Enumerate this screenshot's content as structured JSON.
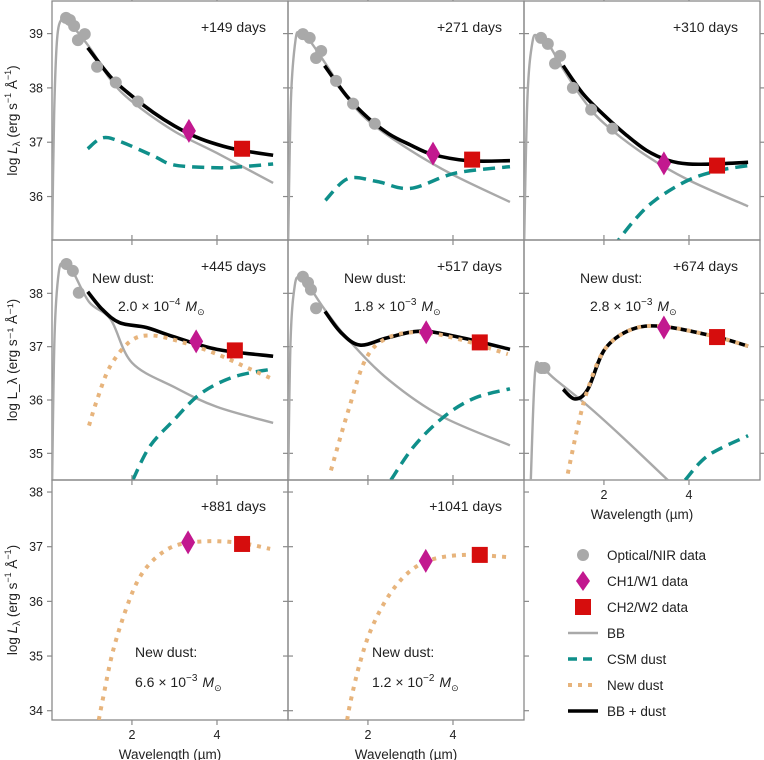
{
  "chart_data": {
    "type": "line",
    "xlabel": "Wavelength (µm)",
    "ylabel": "log L_λ (erg s⁻¹ Å⁻¹)",
    "ylabel_parts": {
      "pre": "log ",
      "L": "L",
      "sub": "λ",
      "units_a": " (erg s",
      "exp1": "−1",
      "units_b": " Å",
      "exp2": "−1",
      "units_c": ")"
    },
    "xlim": [
      0.12,
      5.67
    ],
    "xticks": [
      "2",
      "4"
    ],
    "colors": {
      "optical": "#a9a9a9",
      "ch1": "#c2188f",
      "ch2": "#d60d0d",
      "bb": "#a9a9a9",
      "csm": "#0f8f8a",
      "new": "#e7b47c",
      "total": "#000000"
    },
    "rows": [
      {
        "ylim": [
          35.2,
          39.6
        ],
        "yticks": [
          36,
          37,
          38,
          39
        ]
      },
      {
        "ylim": [
          34.5,
          39.0
        ],
        "yticks": [
          35,
          36,
          37,
          38
        ]
      },
      {
        "ylim": [
          33.83,
          38.22
        ],
        "yticks": [
          34,
          35,
          36,
          37,
          38
        ]
      }
    ],
    "panels": [
      {
        "label": "+149 days",
        "optical": [
          [
            0.45,
            39.29
          ],
          [
            0.54,
            39.25
          ],
          [
            0.64,
            39.14
          ],
          [
            0.73,
            38.88
          ],
          [
            0.89,
            38.99
          ],
          [
            1.18,
            38.39
          ],
          [
            1.62,
            38.1
          ],
          [
            2.14,
            37.75
          ]
        ],
        "ch1": [
          3.34,
          37.21
        ],
        "ch2": [
          4.59,
          36.88
        ],
        "bb": [
          [
            0.12,
            35.0
          ],
          [
            0.17,
            37.5
          ],
          [
            0.24,
            38.9
          ],
          [
            0.35,
            39.27
          ],
          [
            0.5,
            39.22
          ],
          [
            1.0,
            38.75
          ],
          [
            1.5,
            38.15
          ],
          [
            2.0,
            37.75
          ],
          [
            3.0,
            37.2
          ],
          [
            4.0,
            36.8
          ],
          [
            5.32,
            36.25
          ]
        ],
        "total": [
          [
            0.96,
            38.74
          ],
          [
            1.5,
            38.2
          ],
          [
            2.0,
            37.85
          ],
          [
            2.5,
            37.55
          ],
          [
            3.0,
            37.3
          ],
          [
            3.5,
            37.1
          ],
          [
            4.0,
            36.96
          ],
          [
            4.5,
            36.86
          ],
          [
            5.32,
            36.76
          ]
        ],
        "csm": [
          [
            0.96,
            36.88
          ],
          [
            1.3,
            37.08
          ],
          [
            1.7,
            37.02
          ],
          [
            2.5,
            36.75
          ],
          [
            3.0,
            36.58
          ],
          [
            4.0,
            36.53
          ],
          [
            4.6,
            36.55
          ],
          [
            5.32,
            36.6
          ]
        ]
      },
      {
        "label": "+271 days",
        "optical": [
          [
            0.47,
            38.99
          ],
          [
            0.63,
            38.92
          ],
          [
            0.78,
            38.55
          ],
          [
            0.9,
            38.68
          ],
          [
            1.25,
            38.13
          ],
          [
            1.65,
            37.71
          ],
          [
            2.16,
            37.34
          ]
        ],
        "ch1": [
          3.53,
          36.79
        ],
        "ch2": [
          4.45,
          36.68
        ],
        "bb": [
          [
            0.12,
            35.0
          ],
          [
            0.19,
            37.8
          ],
          [
            0.3,
            38.9
          ],
          [
            0.4,
            39.0
          ],
          [
            0.6,
            38.9
          ],
          [
            1.0,
            38.45
          ],
          [
            1.5,
            37.85
          ],
          [
            2.0,
            37.4
          ],
          [
            3.0,
            36.85
          ],
          [
            4.0,
            36.4
          ],
          [
            5.34,
            35.9
          ]
        ],
        "total": [
          [
            0.98,
            38.41
          ],
          [
            1.5,
            37.85
          ],
          [
            2.0,
            37.45
          ],
          [
            2.5,
            37.15
          ],
          [
            3.0,
            36.95
          ],
          [
            3.5,
            36.78
          ],
          [
            4.35,
            36.66
          ],
          [
            5.34,
            36.66
          ]
        ],
        "csm": [
          [
            1.0,
            35.93
          ],
          [
            1.53,
            36.33
          ],
          [
            2.2,
            36.28
          ],
          [
            3.0,
            36.15
          ],
          [
            4.05,
            36.43
          ],
          [
            5.34,
            36.55
          ]
        ]
      },
      {
        "label": "+310 days",
        "optical": [
          [
            0.52,
            38.92
          ],
          [
            0.68,
            38.81
          ],
          [
            0.85,
            38.45
          ],
          [
            0.97,
            38.59
          ],
          [
            1.27,
            38.0
          ],
          [
            1.7,
            37.6
          ],
          [
            2.2,
            37.25
          ]
        ],
        "ch1": [
          3.41,
          36.61
        ],
        "ch2": [
          4.66,
          36.57
        ],
        "bb": [
          [
            0.12,
            35.0
          ],
          [
            0.2,
            37.8
          ],
          [
            0.32,
            38.85
          ],
          [
            0.45,
            38.95
          ],
          [
            0.7,
            38.8
          ],
          [
            1.0,
            38.4
          ],
          [
            1.5,
            37.8
          ],
          [
            2.0,
            37.35
          ],
          [
            3.0,
            36.75
          ],
          [
            4.0,
            36.3
          ],
          [
            5.39,
            35.82
          ]
        ],
        "total": [
          [
            1.04,
            38.41
          ],
          [
            1.5,
            37.9
          ],
          [
            2.0,
            37.5
          ],
          [
            2.5,
            37.15
          ],
          [
            3.0,
            36.85
          ],
          [
            3.5,
            36.67
          ],
          [
            3.98,
            36.6
          ],
          [
            4.6,
            36.6
          ],
          [
            5.39,
            36.63
          ]
        ],
        "csm": [
          [
            2.2,
            35.05
          ],
          [
            2.7,
            35.55
          ],
          [
            3.2,
            35.93
          ],
          [
            3.98,
            36.3
          ],
          [
            4.7,
            36.48
          ],
          [
            5.39,
            36.57
          ]
        ]
      },
      {
        "label": "+445 days",
        "dust": {
          "title": "New dust:",
          "mantissa": "2.0",
          "times": " × 10",
          "exponent": "−4",
          "unit": "M",
          "unit_sub": "⊙"
        },
        "optical": [
          [
            0.46,
            38.55
          ],
          [
            0.61,
            38.42
          ],
          [
            0.75,
            38.01
          ]
        ],
        "ch1": [
          3.51,
          37.1
        ],
        "ch2": [
          4.42,
          36.93
        ],
        "bb": [
          [
            0.12,
            34.3
          ],
          [
            0.18,
            37.2
          ],
          [
            0.28,
            38.4
          ],
          [
            0.4,
            38.55
          ],
          [
            0.6,
            38.42
          ],
          [
            1.0,
            37.83
          ],
          [
            1.5,
            37.51
          ],
          [
            2.0,
            36.7
          ],
          [
            3.0,
            36.24
          ],
          [
            4.0,
            35.87
          ],
          [
            5.32,
            35.57
          ]
        ],
        "total": [
          [
            0.96,
            38.03
          ],
          [
            1.3,
            37.7
          ],
          [
            1.71,
            37.45
          ],
          [
            2.34,
            37.36
          ],
          [
            2.97,
            37.19
          ],
          [
            4.0,
            36.95
          ],
          [
            5.32,
            36.82
          ]
        ],
        "new": [
          [
            0.99,
            35.52
          ],
          [
            1.17,
            35.98
          ],
          [
            1.48,
            36.62
          ],
          [
            1.96,
            37.1
          ],
          [
            2.46,
            37.21
          ],
          [
            3.2,
            37.08
          ],
          [
            4.0,
            36.86
          ],
          [
            4.78,
            36.58
          ],
          [
            5.32,
            36.39
          ]
        ],
        "csm": [
          [
            2.02,
            34.5
          ],
          [
            2.42,
            35.13
          ],
          [
            2.97,
            35.61
          ],
          [
            3.6,
            36.11
          ],
          [
            4.38,
            36.43
          ],
          [
            5.29,
            36.58
          ]
        ]
      },
      {
        "label": "+517 days",
        "dust": {
          "title": "New dust:",
          "mantissa": "1.8",
          "times": " × 10",
          "exponent": "−3",
          "unit": "M",
          "unit_sub": "⊙"
        },
        "optical": [
          [
            0.47,
            38.31
          ],
          [
            0.59,
            38.2
          ],
          [
            0.66,
            38.07
          ],
          [
            0.78,
            37.72
          ]
        ],
        "ch1": [
          3.37,
          37.27
        ],
        "ch2": [
          4.63,
          37.08
        ],
        "bb": [
          [
            0.12,
            34.3
          ],
          [
            0.18,
            37.1
          ],
          [
            0.28,
            38.15
          ],
          [
            0.4,
            38.3
          ],
          [
            0.6,
            38.15
          ],
          [
            0.98,
            37.7
          ],
          [
            1.53,
            37.14
          ],
          [
            2.47,
            36.39
          ],
          [
            3.72,
            35.7
          ],
          [
            5.34,
            35.15
          ]
        ],
        "total": [
          [
            0.99,
            37.66
          ],
          [
            1.36,
            37.27
          ],
          [
            1.81,
            37.03
          ],
          [
            2.47,
            37.17
          ],
          [
            3.25,
            37.29
          ],
          [
            4.19,
            37.17
          ],
          [
            5.34,
            36.95
          ]
        ],
        "new": [
          [
            1.13,
            34.68
          ],
          [
            1.53,
            35.78
          ],
          [
            1.95,
            36.77
          ],
          [
            2.47,
            37.17
          ],
          [
            3.25,
            37.27
          ],
          [
            4.19,
            37.13
          ],
          [
            5.29,
            36.86
          ]
        ],
        "csm": [
          [
            2.54,
            34.5
          ],
          [
            3.1,
            35.15
          ],
          [
            3.81,
            35.7
          ],
          [
            4.52,
            36.04
          ],
          [
            5.34,
            36.21
          ]
        ]
      },
      {
        "label": "+674 days",
        "dust": {
          "title": "New dust:",
          "mantissa": "2.8",
          "times": " × 10",
          "exponent": "−3",
          "unit": "M",
          "unit_sub": "⊙"
        },
        "optical": [
          [
            0.53,
            36.6
          ],
          [
            0.6,
            36.6
          ]
        ],
        "ch1": [
          3.41,
          37.36
        ],
        "ch2": [
          4.66,
          37.18
        ],
        "bb": [
          [
            0.28,
            34.5
          ],
          [
            0.38,
            36.52
          ],
          [
            0.52,
            36.62
          ],
          [
            0.85,
            36.39
          ],
          [
            1.62,
            35.89
          ],
          [
            2.4,
            35.33
          ],
          [
            3.5,
            34.5
          ]
        ],
        "total": [
          [
            1.04,
            36.2
          ],
          [
            1.32,
            36.02
          ],
          [
            1.62,
            36.2
          ],
          [
            2.02,
            36.95
          ],
          [
            2.64,
            37.32
          ],
          [
            3.39,
            37.38
          ],
          [
            4.61,
            37.19
          ],
          [
            5.39,
            37.01
          ]
        ],
        "new": [
          [
            1.15,
            34.62
          ],
          [
            1.39,
            35.52
          ],
          [
            1.62,
            36.2
          ],
          [
            2.02,
            36.95
          ],
          [
            2.64,
            37.32
          ],
          [
            3.39,
            37.38
          ],
          [
            4.61,
            37.19
          ],
          [
            5.39,
            37.01
          ]
        ],
        "csm": [
          [
            3.91,
            34.5
          ],
          [
            4.45,
            34.96
          ],
          [
            5.39,
            35.33
          ]
        ]
      },
      {
        "label": "+881 days",
        "dust": {
          "title": "New dust:",
          "mantissa": "6.6",
          "times": " × 10",
          "exponent": "−3",
          "unit": "M",
          "unit_sub": "⊙"
        },
        "ch1": [
          3.32,
          37.08
        ],
        "ch2": [
          4.59,
          37.05
        ],
        "new": [
          [
            1.22,
            33.83
          ],
          [
            1.32,
            34.23
          ],
          [
            1.55,
            35.08
          ],
          [
            1.88,
            35.9
          ],
          [
            2.19,
            36.45
          ],
          [
            2.58,
            36.81
          ],
          [
            3.06,
            37.03
          ],
          [
            3.76,
            37.1
          ],
          [
            4.54,
            37.07
          ],
          [
            5.25,
            36.96
          ]
        ]
      },
      {
        "label": "+1041 days",
        "dust": {
          "title": "New dust:",
          "mantissa": "1.2",
          "times": " × 10",
          "exponent": "−2",
          "unit": "M",
          "unit_sub": "⊙"
        },
        "ch1": [
          3.36,
          36.74
        ],
        "ch2": [
          4.63,
          36.85
        ],
        "new": [
          [
            1.51,
            33.83
          ],
          [
            1.6,
            34.2
          ],
          [
            1.81,
            34.87
          ],
          [
            2.07,
            35.48
          ],
          [
            2.47,
            36.08
          ],
          [
            2.94,
            36.52
          ],
          [
            3.48,
            36.76
          ],
          [
            4.28,
            36.85
          ],
          [
            5.29,
            36.81
          ]
        ]
      }
    ],
    "legend": {
      "placement": "bottom-right",
      "entries": [
        {
          "key": "optical",
          "label": "Optical/NIR data"
        },
        {
          "key": "ch1",
          "label": "CH1/W1 data"
        },
        {
          "key": "ch2",
          "label": "CH2/W2 data"
        },
        {
          "key": "bb",
          "label": "BB"
        },
        {
          "key": "csm",
          "label": "CSM dust"
        },
        {
          "key": "new",
          "label": "New dust"
        },
        {
          "key": "total",
          "label": "BB + dust"
        }
      ]
    }
  }
}
